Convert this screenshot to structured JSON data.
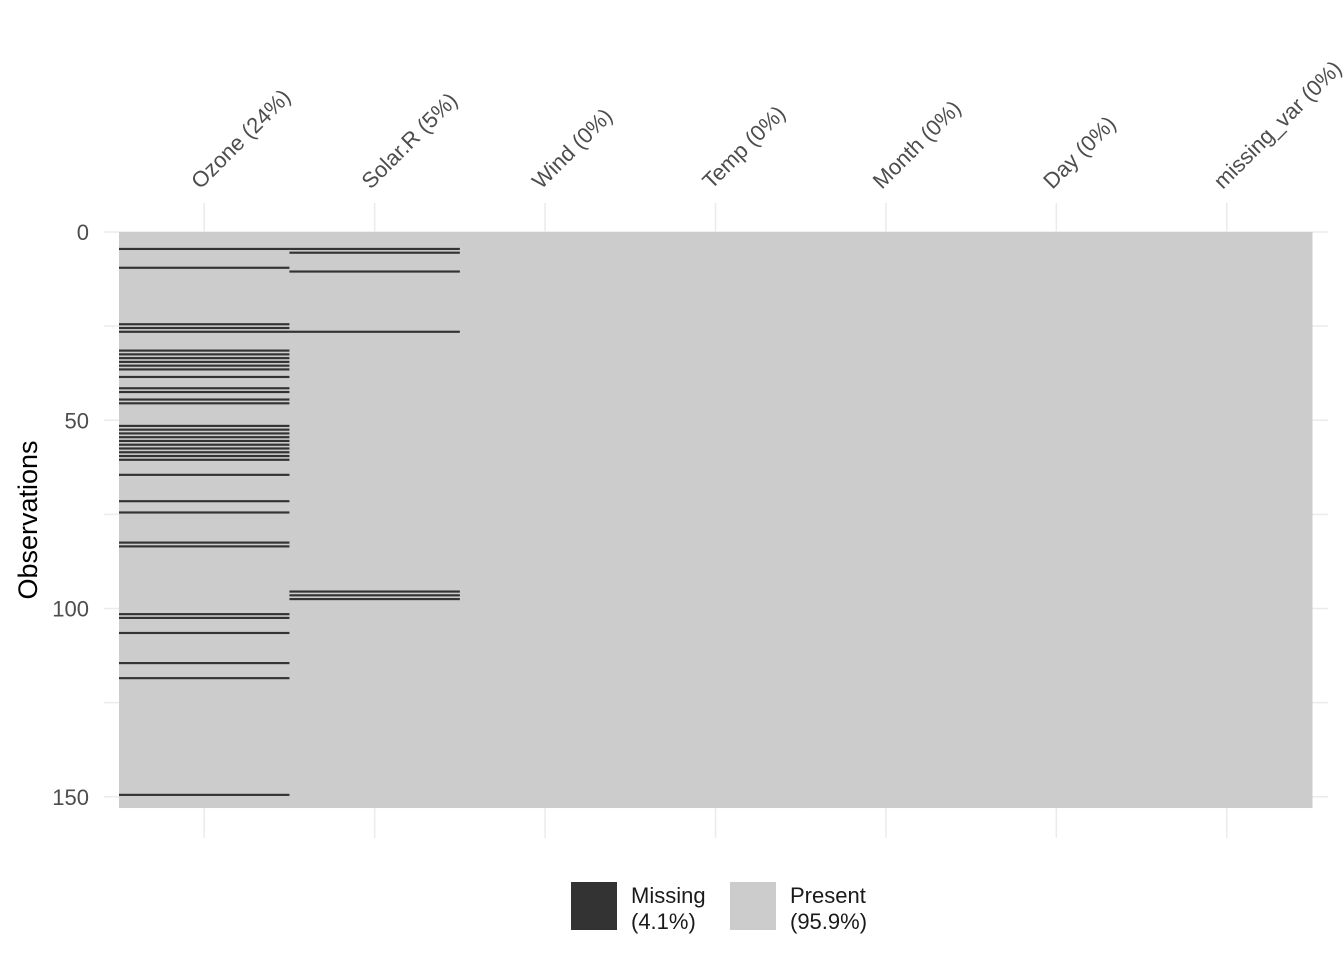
{
  "chart_data": {
    "type": "heatmap",
    "title": "",
    "xlabel": "",
    "ylabel": "Observations",
    "n_obs": 153,
    "ylim": [
      0,
      153
    ],
    "y_ticks": [
      0,
      50,
      100,
      150
    ],
    "columns": [
      {
        "label": "Ozone (24%)",
        "missing_rows": [
          5,
          10,
          25,
          26,
          27,
          32,
          33,
          34,
          35,
          36,
          37,
          39,
          42,
          43,
          45,
          46,
          52,
          53,
          54,
          55,
          56,
          57,
          58,
          59,
          60,
          61,
          65,
          72,
          75,
          83,
          84,
          102,
          103,
          107,
          115,
          119,
          150
        ]
      },
      {
        "label": "Solar.R (5%)",
        "missing_rows": [
          5,
          6,
          11,
          27,
          96,
          97,
          98
        ]
      },
      {
        "label": "Wind (0%)",
        "missing_rows": []
      },
      {
        "label": "Temp (0%)",
        "missing_rows": []
      },
      {
        "label": "Month (0%)",
        "missing_rows": []
      },
      {
        "label": "Day (0%)",
        "missing_rows": []
      },
      {
        "label": "missing_var (0%)",
        "missing_rows": []
      }
    ],
    "legend": {
      "placement": "bottom",
      "items": [
        {
          "key": "missing",
          "line1": "Missing",
          "line2": "(4.1%)",
          "color": "#333333"
        },
        {
          "key": "present",
          "line1": "Present",
          "line2": "(95.9%)",
          "color": "#cccccc"
        }
      ]
    },
    "colors": {
      "missing": "#333333",
      "present": "#cccccc",
      "grid": "#ebebeb"
    }
  }
}
